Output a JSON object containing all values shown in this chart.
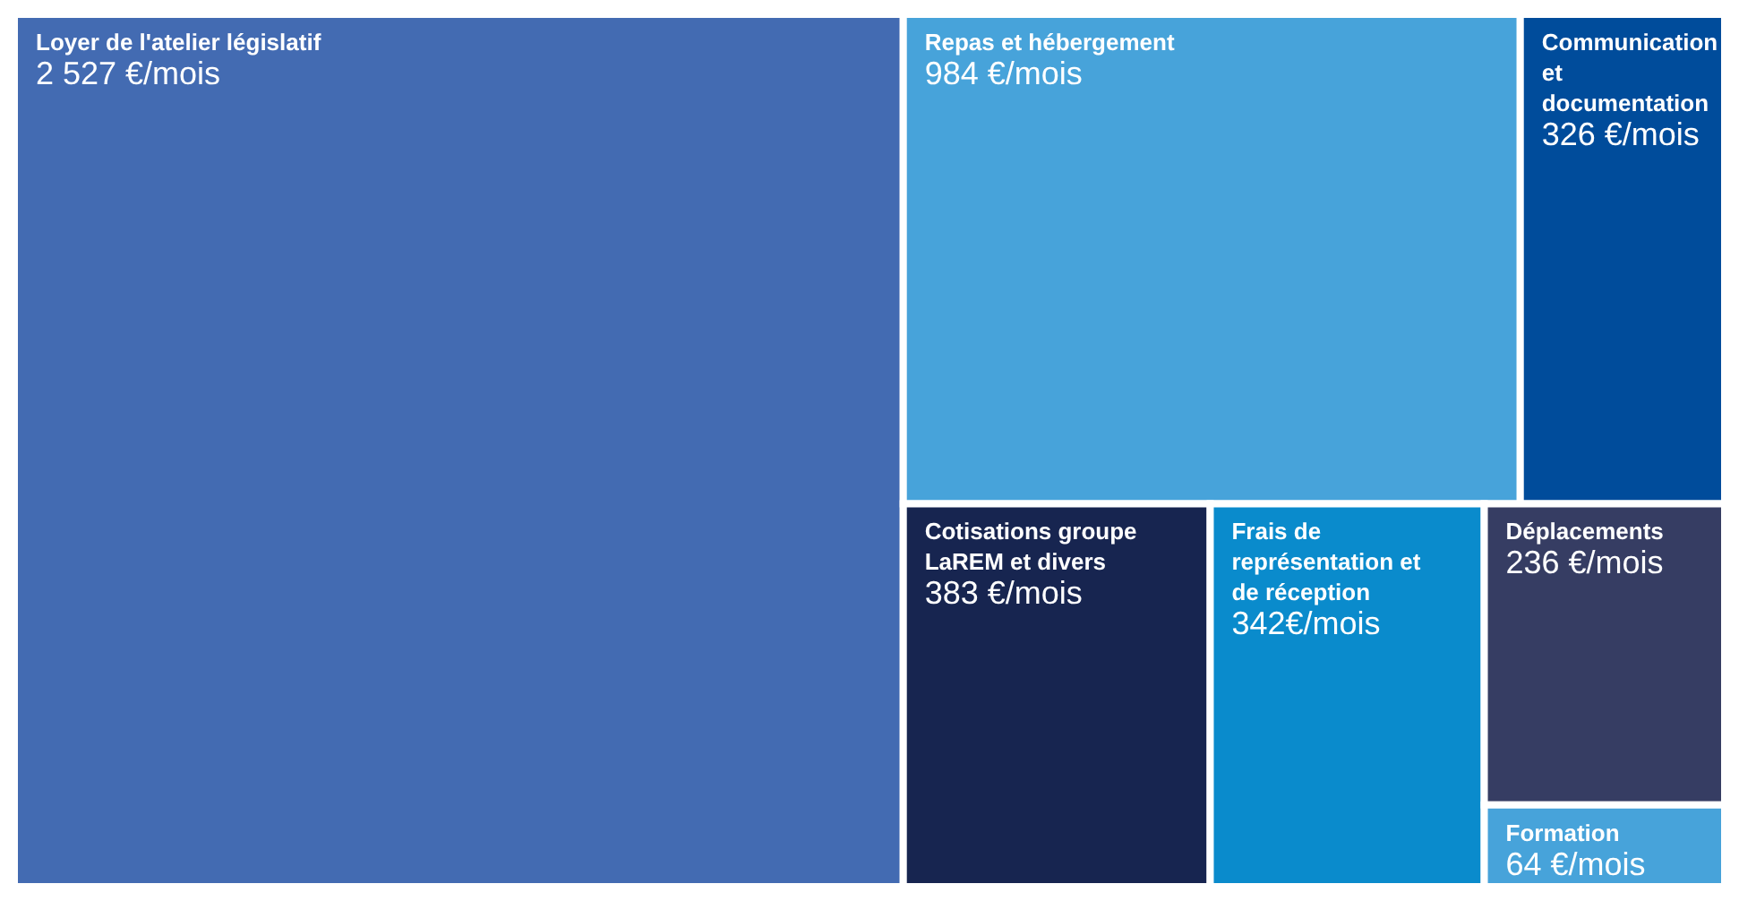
{
  "chart_data": {
    "type": "other",
    "categories": [
      "Loyer de l'atelier législatif",
      "Repas et hébergement",
      "Communication et documentation",
      "Cotisations groupe LaREM et divers",
      "Frais de représentation et de réception",
      "Déplacements",
      "Formation"
    ],
    "values": [
      2527,
      984,
      326,
      383,
      342,
      236,
      64
    ],
    "colors": [
      "#436bb2",
      "#47a3da",
      "#004c9b",
      "#172550",
      "#0a8bcc",
      "#363d63",
      "#47a3da"
    ],
    "value_labels": [
      "2 527 €/mois",
      "984 €/mois",
      "326 €/mois",
      "383 €/mois",
      "342€/mois",
      "236 €/mois",
      "64 €/mois"
    ]
  }
}
